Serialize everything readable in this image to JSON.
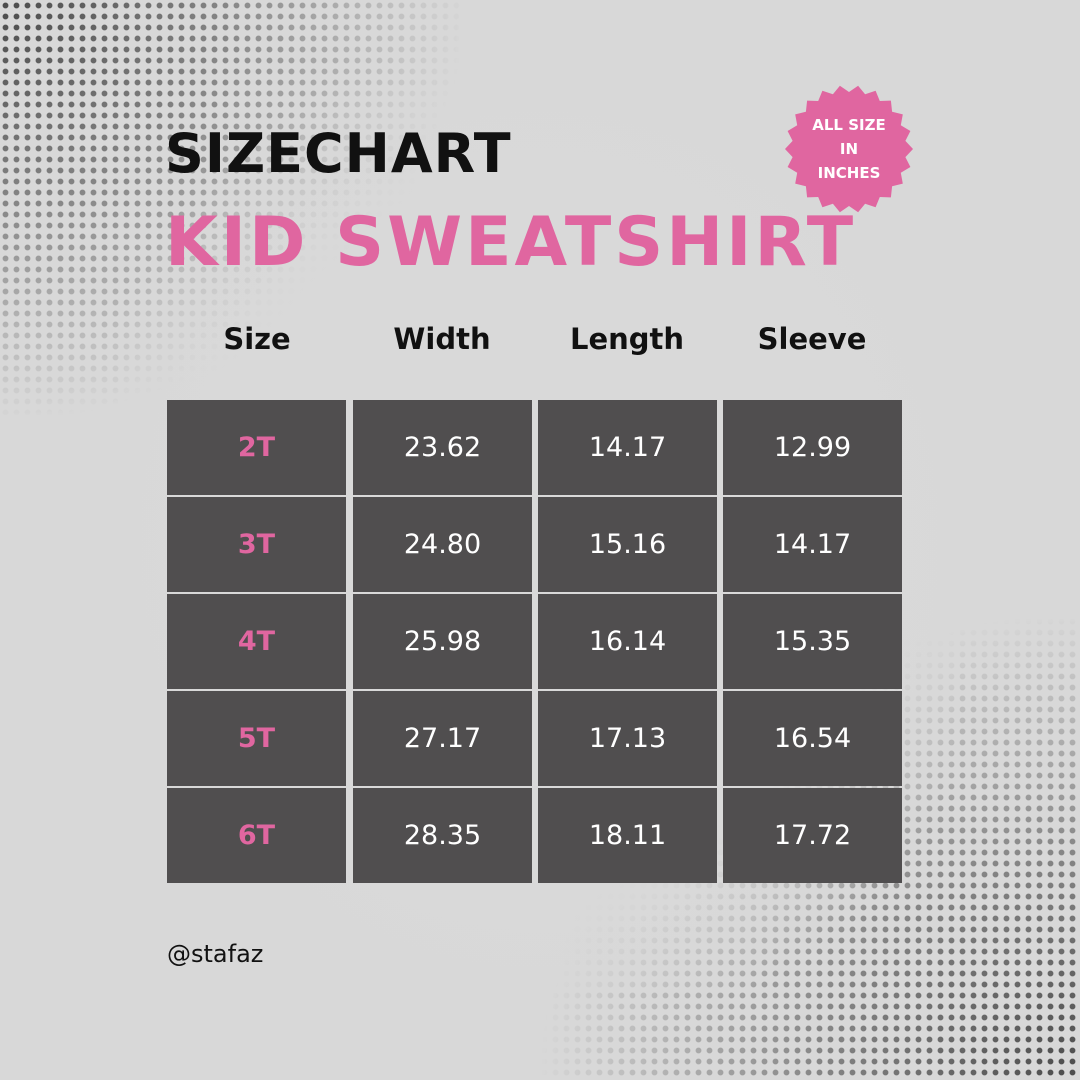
{
  "title": "SIZECHART",
  "subtitle": "KID SWEATSHIRT",
  "badge": {
    "lines": [
      "ALL SIZE",
      "IN",
      "INCHES"
    ],
    "color": "#e066a0"
  },
  "colors": {
    "accent": "#e066a0",
    "cell": "#504e4f",
    "background": "#d8d8d8"
  },
  "table": {
    "headers": [
      "Size",
      "Width",
      "Length",
      "Sleeve"
    ],
    "rows": [
      [
        "2T",
        "23.62",
        "14.17",
        "12.99"
      ],
      [
        "3T",
        "24.80",
        "15.16",
        "14.17"
      ],
      [
        "4T",
        "25.98",
        "16.14",
        "15.35"
      ],
      [
        "5T",
        "27.17",
        "17.13",
        "16.54"
      ],
      [
        "6T",
        "28.35",
        "18.11",
        "17.72"
      ]
    ]
  },
  "handle": "@stafaz"
}
